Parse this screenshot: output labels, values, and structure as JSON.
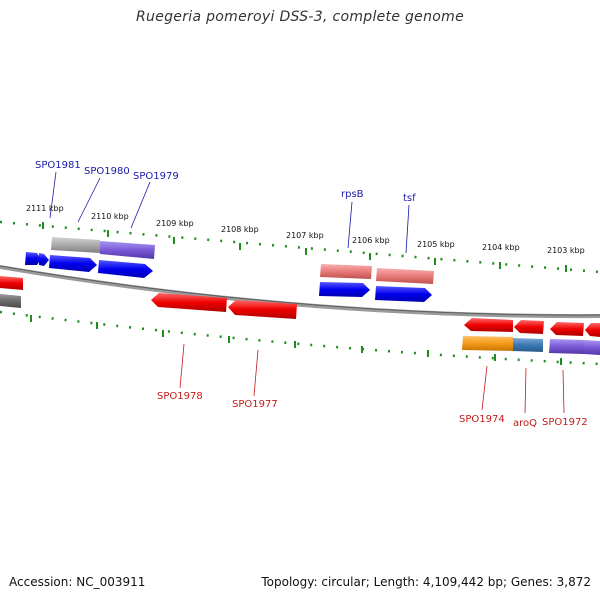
{
  "title": "Ruegeria pomeroyi DSS-3, complete genome",
  "footer": {
    "accession": "Accession: NC_003911",
    "topology": "Topology: circular; Length: 4,109,442 bp; Genes: 3,872"
  },
  "ticks": [
    "2111 kbp",
    "2110 kbp",
    "2109 kbp",
    "2108 kbp",
    "2107 kbp",
    "2106 kbp",
    "2105 kbp",
    "2104 kbp",
    "2103 kbp"
  ],
  "gene_labels": {
    "forward": [
      "SPO1981",
      "SPO1980",
      "SPO1979",
      "rpsB",
      "tsf"
    ],
    "reverse": [
      "SPO1978",
      "SPO1977",
      "SPO1974",
      "aroQ",
      "SPO1972"
    ]
  },
  "colors": {
    "forward_label": "#1a1aa8",
    "reverse_label": "#c41a1a",
    "tick_mark": "#1e8c1e",
    "backbone": "#808080",
    "gene_blue": "#0000ee",
    "gene_red": "#ee0000",
    "gene_pink": "#e87a7a",
    "gene_gray": "#aaaaaa",
    "gene_purple": "#7a5ad8",
    "gene_orange": "#f59a18",
    "gene_steel": "#3c78b4"
  }
}
